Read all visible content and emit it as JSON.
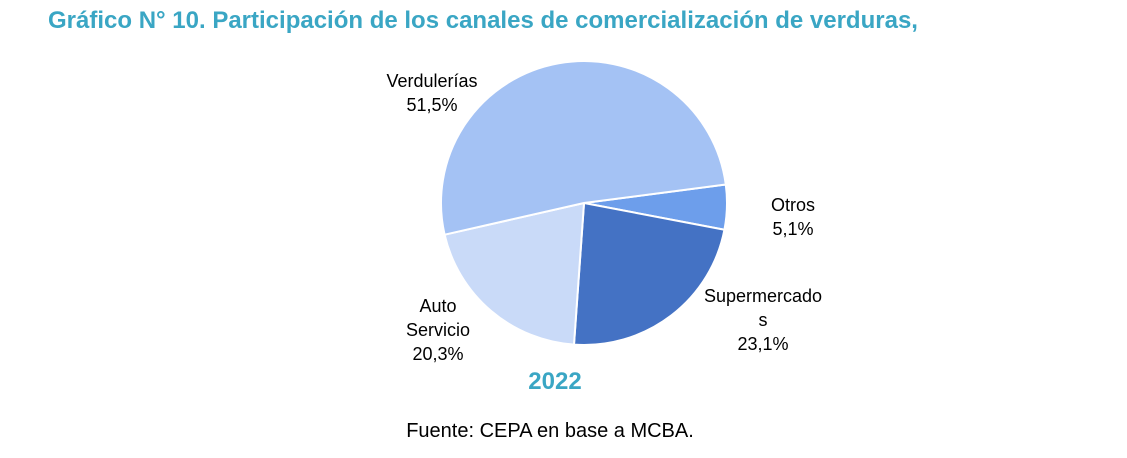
{
  "chart_data": {
    "type": "pie",
    "title": "Gráfico N° 10. Participación de los canales de comercialización de verduras,",
    "subtitle": "2022",
    "source": "Fuente: CEPA en base a MCBA.",
    "legend": "none",
    "slices": [
      {
        "label_lines": [
          "Verdulerías"
        ],
        "value": 51.5,
        "value_text": "51,5%",
        "color": "#a4c2f4"
      },
      {
        "label_lines": [
          "Otros"
        ],
        "value": 5.1,
        "value_text": "5,1%",
        "color": "#6d9eeb"
      },
      {
        "label_lines": [
          "Supermercado",
          "s"
        ],
        "value": 23.1,
        "value_text": "23,1%",
        "color": "#4472c4"
      },
      {
        "label_lines": [
          "Auto",
          "Servicio"
        ],
        "value": 20.3,
        "value_text": "20,3%",
        "color": "#c9daf8"
      }
    ]
  }
}
